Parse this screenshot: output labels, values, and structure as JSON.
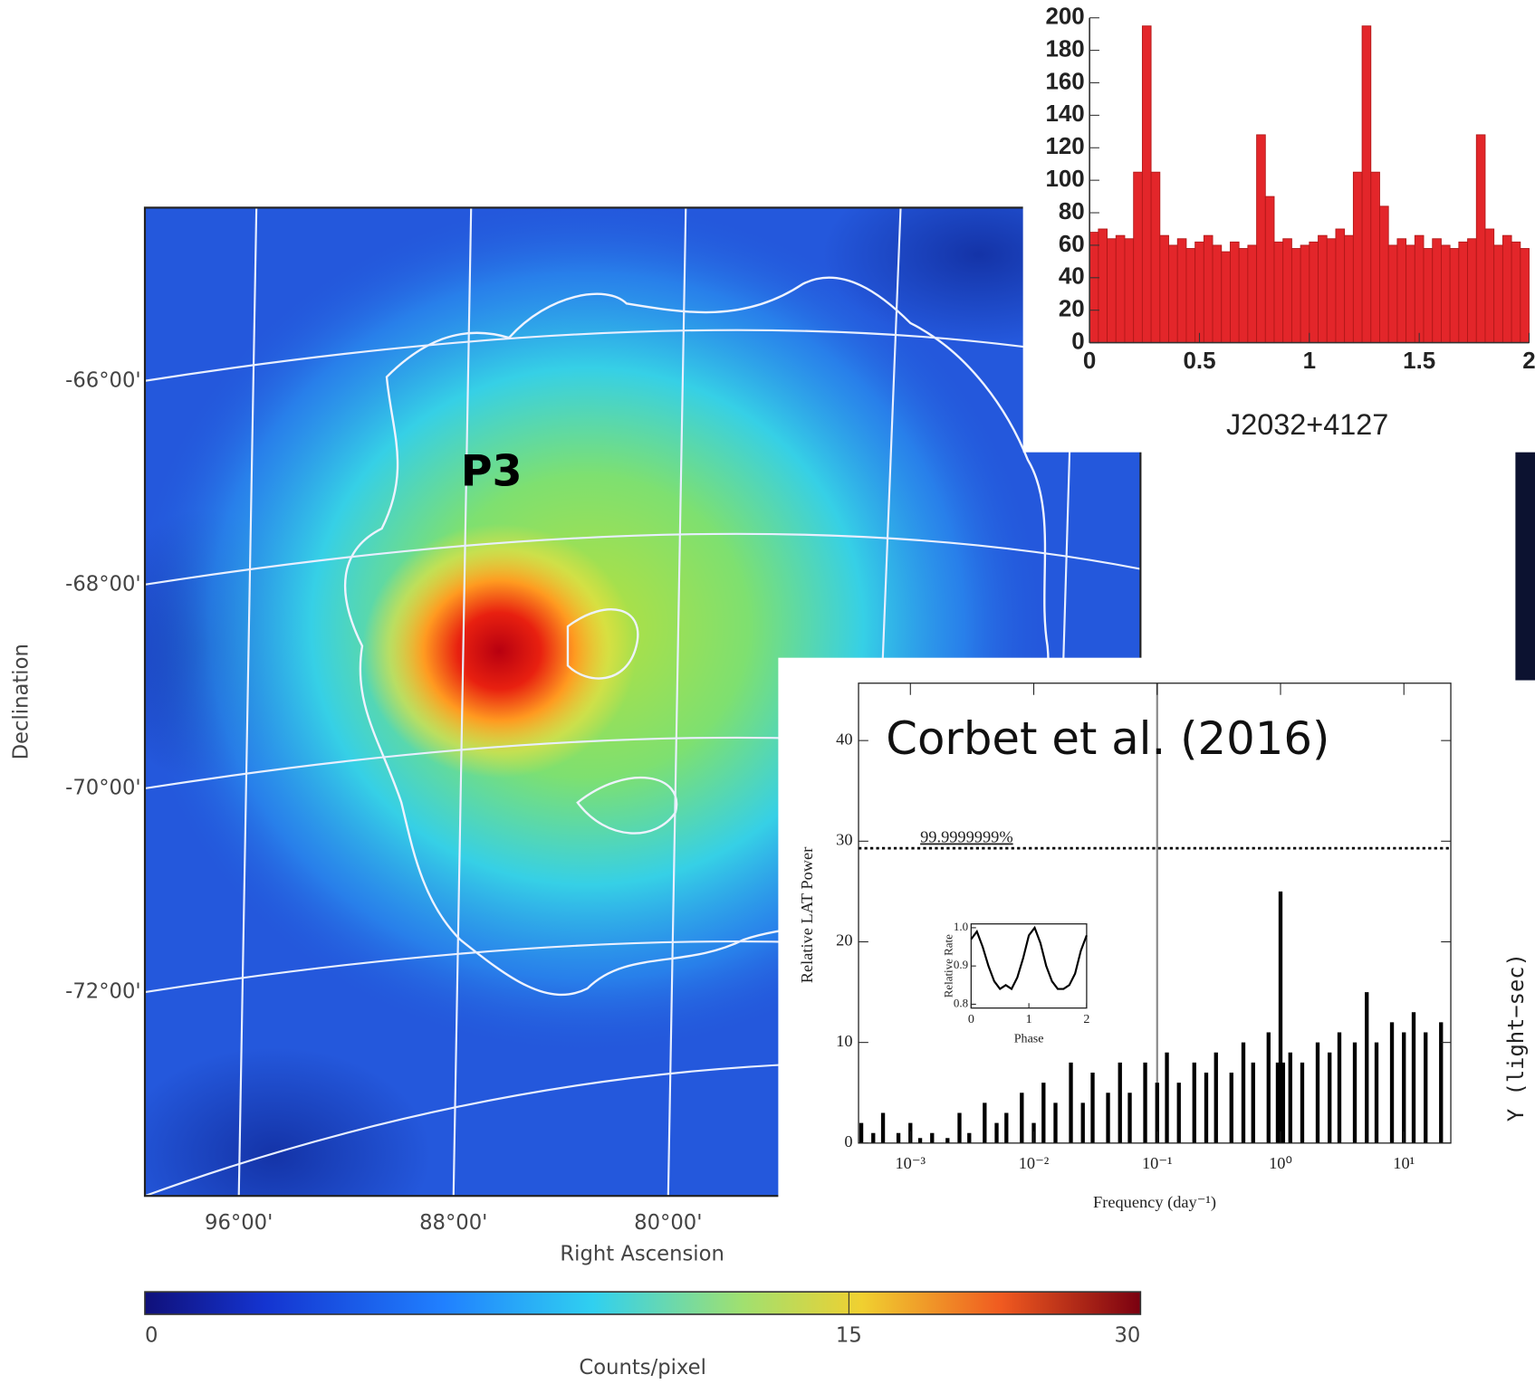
{
  "chart_data": [
    {
      "type": "image",
      "xlabel": "Right Ascension",
      "ylabel": "Declination",
      "annotation": "P3",
      "xlim": [
        99.5,
        62.4
      ],
      "ylim": [
        -74.0,
        -64.3
      ],
      "xticks": [
        {
          "value": 96,
          "label": "96°00'"
        },
        {
          "value": 88,
          "label": "88°00'"
        },
        {
          "value": 80,
          "label": "80°00'"
        }
      ],
      "yticks": [
        {
          "value": -66,
          "label": "-66°00'"
        },
        {
          "value": -68,
          "label": "-68°00'"
        },
        {
          "value": -70,
          "label": "-70°00'"
        },
        {
          "value": -72,
          "label": "-72°00'"
        }
      ],
      "colorbar": {
        "label": "Counts/pixel",
        "lim": [
          0,
          30
        ],
        "ticks": [
          0,
          15,
          30
        ],
        "scale": "sqrt"
      }
    },
    {
      "type": "histogram",
      "xlabel": "J2032+4127",
      "color": "#e3262a",
      "bins": [
        0,
        0.04,
        0.08,
        0.12,
        0.16,
        0.2,
        0.24,
        0.28,
        0.32,
        0.36,
        0.4,
        0.44,
        0.48,
        0.52,
        0.56,
        0.6,
        0.64,
        0.68,
        0.72,
        0.76,
        0.8,
        0.84,
        0.88,
        0.92,
        0.96,
        1,
        1.04,
        1.08,
        1.12,
        1.16,
        1.2,
        1.24,
        1.28,
        1.32,
        1.36,
        1.4,
        1.44,
        1.48,
        1.52,
        1.56,
        1.6,
        1.64,
        1.68,
        1.72,
        1.76,
        1.8,
        1.84,
        1.88,
        1.92,
        1.96,
        2
      ],
      "counts": [
        68,
        70,
        64,
        66,
        64,
        105,
        195,
        105,
        66,
        60,
        64,
        58,
        62,
        66,
        60,
        56,
        62,
        58,
        60,
        128,
        90,
        62,
        64,
        58,
        60,
        62,
        66,
        64,
        70,
        66,
        105,
        195,
        105,
        84,
        60,
        64,
        60,
        66,
        58,
        64,
        60,
        58,
        62,
        64,
        128,
        70,
        60,
        66,
        62,
        58
      ],
      "xlim": [
        0,
        2
      ],
      "ylim": [
        0,
        200
      ],
      "xticks": [
        0,
        0.5,
        1,
        1.5,
        2
      ],
      "yticks": [
        0,
        20,
        40,
        60,
        80,
        100,
        120,
        140,
        160,
        180,
        200
      ]
    },
    {
      "type": "spike",
      "title": "Corbet et al. (2016)",
      "xlabel": "Frequency (day⁻¹)",
      "ylabel": "Relative LAT Power",
      "xscale": "log",
      "color": "#000000",
      "x": [
        0.0004,
        0.0005,
        0.0006,
        0.0008,
        0.001,
        0.0012,
        0.0015,
        0.002,
        0.0025,
        0.003,
        0.004,
        0.005,
        0.006,
        0.008,
        0.01,
        0.012,
        0.015,
        0.02,
        0.025,
        0.03,
        0.04,
        0.05,
        0.06,
        0.08,
        0.1,
        0.12,
        0.15,
        0.2,
        0.25,
        0.3,
        0.4,
        0.5,
        0.6,
        0.8,
        0.95,
        1,
        1.05,
        1.2,
        1.5,
        2,
        2.5,
        3,
        4,
        5,
        6,
        8,
        10,
        12,
        15,
        20
      ],
      "values": [
        2,
        1,
        3,
        1,
        2,
        0.5,
        1,
        0.5,
        3,
        1,
        4,
        2,
        3,
        5,
        2,
        6,
        4,
        8,
        4,
        7,
        5,
        8,
        5,
        8,
        6,
        9,
        6,
        8,
        7,
        9,
        7,
        10,
        8,
        11,
        8,
        25,
        8,
        9,
        8,
        10,
        9,
        11,
        10,
        15,
        10,
        12,
        11,
        13,
        11,
        12
      ],
      "xlim": [
        0.00038,
        24
      ],
      "ylim": [
        0,
        45.7
      ],
      "xticks": [
        {
          "value": 0.001,
          "label": "10⁻³"
        },
        {
          "value": 0.01,
          "label": "10⁻²"
        },
        {
          "value": 0.1,
          "label": "10⁻¹"
        },
        {
          "value": 1,
          "label": "10⁰"
        },
        {
          "value": 10,
          "label": "10¹"
        }
      ],
      "yticks": [
        0,
        10,
        20,
        30,
        40
      ],
      "threshold": 29.3,
      "threshold_label": "99.9999999%",
      "marker_x": 0.1
    },
    {
      "type": "line",
      "xlabel": "Phase",
      "ylabel": "Relative Rate",
      "color": "#000000",
      "x": [
        0,
        0.1,
        0.2,
        0.3,
        0.4,
        0.5,
        0.6,
        0.7,
        0.8,
        0.9,
        1,
        1.1,
        1.2,
        1.3,
        1.4,
        1.5,
        1.6,
        1.7,
        1.8,
        1.9,
        2
      ],
      "values": [
        0.97,
        0.99,
        0.95,
        0.9,
        0.86,
        0.84,
        0.85,
        0.84,
        0.87,
        0.92,
        0.98,
        1.0,
        0.96,
        0.9,
        0.86,
        0.84,
        0.84,
        0.85,
        0.88,
        0.94,
        0.98
      ],
      "xlim": [
        0,
        2
      ],
      "ylim": [
        0.79,
        1.01
      ],
      "xticks": [
        0,
        1,
        2
      ],
      "yticks": [
        0.8,
        0.9,
        {
          "value": 1,
          "label": "1.0"
        }
      ]
    }
  ],
  "side_figure": {
    "ylabel": "Y (light−sec)"
  }
}
